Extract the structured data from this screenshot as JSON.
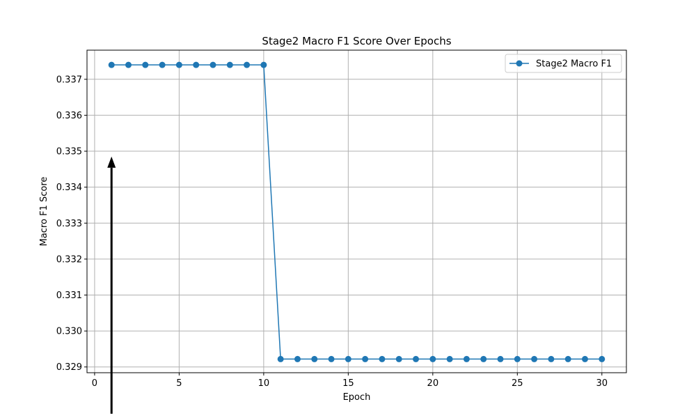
{
  "chart_data": {
    "type": "line",
    "title": "Stage2 Macro F1 Score Over Epochs",
    "xlabel": "Epoch",
    "ylabel": "Macro F1 Score",
    "xlim": [
      -0.45,
      31.45
    ],
    "ylim": [
      0.32884,
      0.33781
    ],
    "xticks": [
      0,
      5,
      10,
      15,
      20,
      25,
      30
    ],
    "yticks": [
      0.329,
      0.33,
      0.331,
      0.332,
      0.333,
      0.334,
      0.335,
      0.336,
      0.337
    ],
    "xtick_labels": [
      "0",
      "5",
      "10",
      "15",
      "20",
      "25",
      "30"
    ],
    "ytick_labels": [
      "0.329",
      "0.330",
      "0.331",
      "0.332",
      "0.333",
      "0.334",
      "0.335",
      "0.336",
      "0.337"
    ],
    "grid": true,
    "legend_position": "top-right",
    "series": [
      {
        "name": "Stage2 Macro F1",
        "color": "#1f77b4",
        "marker": "circle",
        "x": [
          1,
          2,
          3,
          4,
          5,
          6,
          7,
          8,
          9,
          10,
          11,
          12,
          13,
          14,
          15,
          16,
          17,
          18,
          19,
          20,
          21,
          22,
          23,
          24,
          25,
          26,
          27,
          28,
          29,
          30
        ],
        "y": [
          0.3374,
          0.3374,
          0.3374,
          0.3374,
          0.3374,
          0.3374,
          0.3374,
          0.3374,
          0.3374,
          0.3374,
          0.32922,
          0.32922,
          0.32922,
          0.32922,
          0.32922,
          0.32922,
          0.32922,
          0.32922,
          0.32922,
          0.32922,
          0.32922,
          0.32922,
          0.32922,
          0.32922,
          0.32922,
          0.32922,
          0.32922,
          0.32922,
          0.32922,
          0.32922
        ]
      }
    ],
    "annotations": [
      {
        "type": "arrow",
        "x": 1,
        "y_tip": 0.33485,
        "y_tail": 0.3277,
        "color": "#000000"
      }
    ]
  }
}
